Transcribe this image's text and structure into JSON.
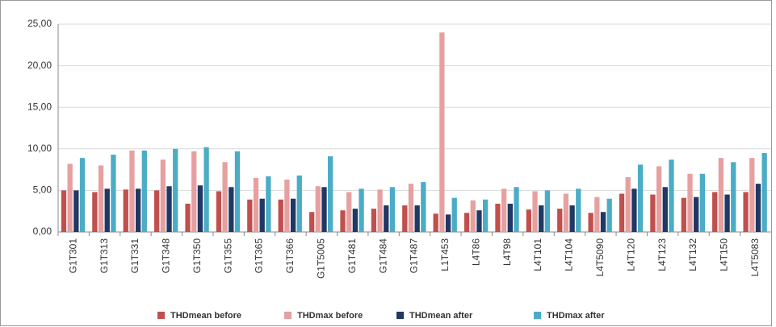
{
  "chart_data": {
    "type": "bar",
    "categories": [
      "G1T301",
      "G1T313",
      "G1T331",
      "G1T348",
      "G1T350",
      "G1T355",
      "G1T365",
      "G1T366",
      "G1T5005",
      "G1T481",
      "G1T484",
      "G1T487",
      "L1T453",
      "L4T86",
      "L4T98",
      "L4T101",
      "L4T104",
      "L4T5090",
      "L4T120",
      "L4T123",
      "L4T132",
      "L4T150",
      "L4T5083"
    ],
    "series": [
      {
        "name": "THDmean before",
        "color": "#c0504d",
        "values": [
          5.0,
          4.8,
          5.1,
          5.0,
          3.4,
          4.9,
          3.9,
          3.9,
          2.4,
          2.6,
          2.8,
          3.2,
          2.2,
          2.3,
          3.4,
          2.7,
          2.8,
          2.3,
          4.6,
          4.5,
          4.1,
          4.8,
          4.8
        ]
      },
      {
        "name": "THDmax before",
        "color": "#e6a0a0",
        "values": [
          8.2,
          8.0,
          9.8,
          8.7,
          9.7,
          8.4,
          6.5,
          6.3,
          5.5,
          4.8,
          5.1,
          5.8,
          24.0,
          3.8,
          5.2,
          4.9,
          4.6,
          4.2,
          6.6,
          7.9,
          7.0,
          8.9,
          8.9
        ]
      },
      {
        "name": "THDmean after",
        "color": "#1f3864",
        "values": [
          5.0,
          5.2,
          5.2,
          5.5,
          5.6,
          5.4,
          4.0,
          4.0,
          5.4,
          2.8,
          3.2,
          3.2,
          2.1,
          2.6,
          3.4,
          3.2,
          3.2,
          2.4,
          5.2,
          5.4,
          4.2,
          4.5,
          5.8
        ]
      },
      {
        "name": "THDmax after",
        "color": "#4bacc6",
        "values": [
          8.9,
          9.3,
          9.8,
          10.0,
          10.2,
          9.7,
          6.7,
          6.8,
          9.1,
          5.2,
          5.4,
          6.0,
          4.1,
          3.9,
          5.4,
          5.0,
          5.2,
          4.0,
          8.1,
          8.7,
          7.0,
          8.4,
          9.5
        ]
      }
    ],
    "ylim": [
      0,
      25
    ],
    "yticks": [
      {
        "value": 0,
        "label": "0,00"
      },
      {
        "value": 5,
        "label": "5,00"
      },
      {
        "value": 10,
        "label": "10,00"
      },
      {
        "value": 15,
        "label": "15,00"
      },
      {
        "value": 20,
        "label": "20,00"
      },
      {
        "value": 25,
        "label": "25,00"
      }
    ],
    "grid": true
  }
}
